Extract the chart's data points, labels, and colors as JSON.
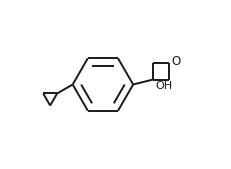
{
  "bg_color": "#ffffff",
  "line_color": "#1a1a1a",
  "line_width": 1.4,
  "font_size_O": 8.5,
  "font_size_OH": 8.0,
  "OH_label": "OH",
  "O_label": "O",
  "figsize": [
    2.32,
    1.69
  ],
  "dpi": 100
}
